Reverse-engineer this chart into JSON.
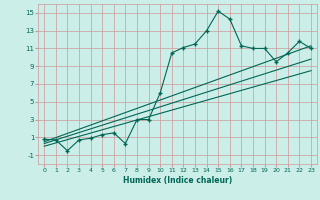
{
  "xlabel": "Humidex (Indice chaleur)",
  "background_color": "#cceee8",
  "grid_color": "#cc9999",
  "line_color": "#006655",
  "xlim": [
    -0.5,
    23.5
  ],
  "ylim": [
    -2.0,
    16.0
  ],
  "xticks": [
    0,
    1,
    2,
    3,
    4,
    5,
    6,
    7,
    8,
    9,
    10,
    11,
    12,
    13,
    14,
    15,
    16,
    17,
    18,
    19,
    20,
    21,
    22,
    23
  ],
  "yticks": [
    -1,
    1,
    3,
    5,
    7,
    9,
    11,
    13,
    15
  ],
  "main_x": [
    0,
    1,
    2,
    3,
    4,
    5,
    6,
    7,
    8,
    9,
    10,
    11,
    12,
    13,
    14,
    15,
    16,
    17,
    18,
    19,
    20,
    21,
    22,
    23
  ],
  "main_y": [
    0.8,
    0.7,
    -0.5,
    0.7,
    0.9,
    1.3,
    1.5,
    0.3,
    3.0,
    3.0,
    6.0,
    10.5,
    11.1,
    11.5,
    13.0,
    15.2,
    14.3,
    11.3,
    11.0,
    11.0,
    9.5,
    10.5,
    11.8,
    11.0
  ],
  "line1_x": [
    0,
    23
  ],
  "line1_y": [
    0.5,
    11.3
  ],
  "line2_x": [
    0,
    23
  ],
  "line2_y": [
    0.3,
    9.8
  ],
  "line3_x": [
    0,
    23
  ],
  "line3_y": [
    0.0,
    8.5
  ]
}
